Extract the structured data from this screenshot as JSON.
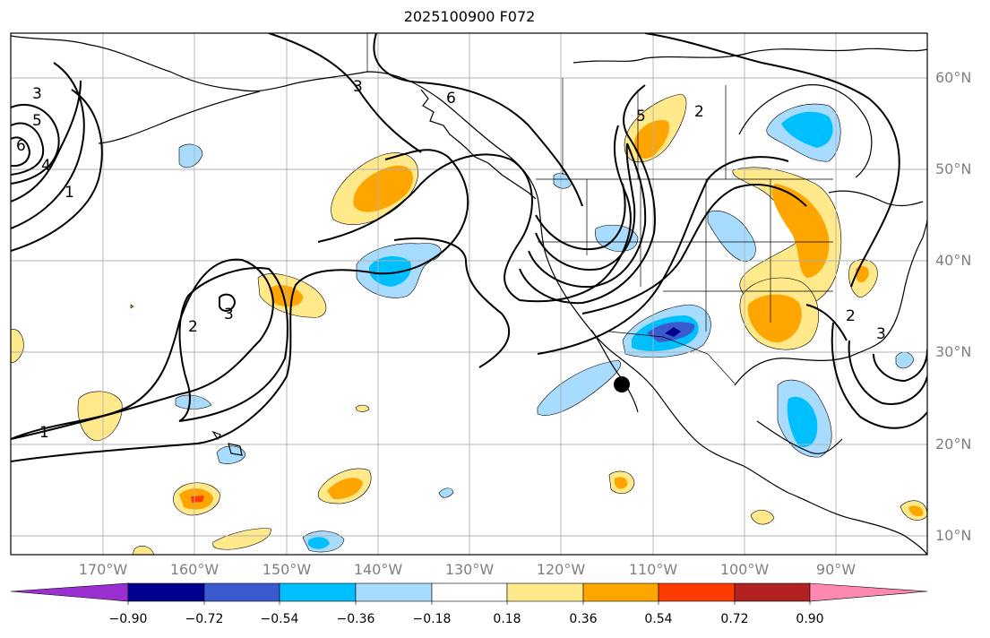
{
  "title": "2025100900 F072",
  "lat_labels": [
    "60°N",
    "50°N",
    "40°N",
    "30°N",
    "20°N",
    "10°N"
  ],
  "lon_labels": [
    "170°W",
    "160°W",
    "150°W",
    "140°W",
    "130°W",
    "120°W",
    "110°W",
    "100°W",
    "90°W"
  ],
  "contour_labels": [
    "1",
    "1",
    "2",
    "2",
    "2",
    "3",
    "3",
    "3",
    "3",
    "4",
    "5",
    "5",
    "6",
    "6"
  ],
  "colorbar": {
    "ticks": [
      "−0.90",
      "−0.72",
      "−0.54",
      "−0.36",
      "−0.18",
      "0.18",
      "0.36",
      "0.54",
      "0.72",
      "0.90"
    ],
    "colors": [
      "#9b30d0",
      "#000090",
      "#3a5bd0",
      "#00bfff",
      "#a8dcff",
      "#ffffff",
      "#ffe98a",
      "#ffa500",
      "#ff3c00",
      "#b22222",
      "#ff88b0"
    ]
  },
  "colors": {
    "fill_light_blue": "#a8dcff",
    "fill_blue": "#00bfff",
    "fill_mid_blue": "#3a5bd0",
    "fill_dark_blue": "#000090",
    "fill_light_yellow": "#ffe98a",
    "fill_orange": "#ffa500",
    "fill_red": "#ff3c00",
    "gridline": "#b0b0b0",
    "contour": "#000000"
  },
  "marker": {
    "name": "black-dot-marker"
  }
}
